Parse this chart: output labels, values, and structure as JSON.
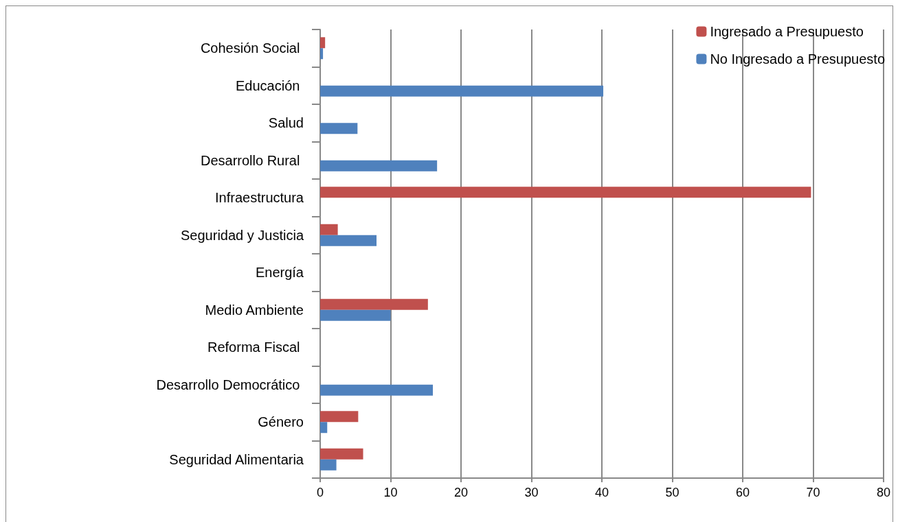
{
  "chart_data": {
    "type": "bar",
    "orientation": "horizontal",
    "categories": [
      "Cohesión Social ",
      "Educación ",
      "Salud",
      "Desarrollo Rural ",
      "Infraestructura",
      "Seguridad y Justicia",
      "Energía",
      "Medio Ambiente",
      "Reforma Fiscal ",
      "Desarrollo Democrático ",
      "Género",
      "Seguridad Alimentaria"
    ],
    "series": [
      {
        "name": "Ingresado a Presupuesto",
        "color": "#c0504d",
        "values": [
          0.7,
          null,
          null,
          null,
          69.7,
          2.5,
          null,
          15.3,
          null,
          null,
          5.4,
          6.1
        ]
      },
      {
        "name": "No Ingresado a Presupuesto",
        "color": "#4f81bd",
        "values": [
          0.4,
          40.2,
          5.3,
          16.6,
          null,
          8.0,
          null,
          10.0,
          null,
          16.0,
          1.0,
          2.3
        ]
      }
    ],
    "xlim": [
      0,
      80
    ],
    "xticks": [
      0,
      10,
      20,
      30,
      40,
      50,
      60,
      70,
      80
    ],
    "grid": "x",
    "legend": "top right"
  }
}
